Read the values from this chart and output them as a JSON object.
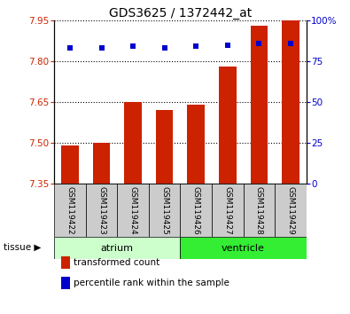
{
  "title": "GDS3625 / 1372442_at",
  "samples": [
    "GSM119422",
    "GSM119423",
    "GSM119424",
    "GSM119425",
    "GSM119426",
    "GSM119427",
    "GSM119428",
    "GSM119429"
  ],
  "bar_values": [
    7.49,
    7.5,
    7.65,
    7.62,
    7.64,
    7.78,
    7.93,
    7.95
  ],
  "bar_bottom": 7.35,
  "percentile_values": [
    83,
    83,
    84,
    83,
    84,
    85,
    86,
    86
  ],
  "ylim_left": [
    7.35,
    7.95
  ],
  "ylim_right": [
    0,
    100
  ],
  "yticks_left": [
    7.35,
    7.5,
    7.65,
    7.8,
    7.95
  ],
  "yticks_right": [
    0,
    25,
    50,
    75,
    100
  ],
  "ytick_labels_right": [
    "0",
    "25",
    "50",
    "75",
    "100%"
  ],
  "bar_color": "#cc2200",
  "dot_color": "#0000cc",
  "tissue_labels": [
    "atrium",
    "ventricle"
  ],
  "tissue_ranges": [
    [
      0,
      3
    ],
    [
      4,
      7
    ]
  ],
  "tissue_color_atrium": "#ccffcc",
  "tissue_color_ventricle": "#33ee33",
  "bg_color": "#ffffff",
  "grid_color": "#000000",
  "axis_label_left_color": "#cc2200",
  "axis_label_right_color": "#0000cc",
  "sample_bg_color": "#cccccc",
  "legend_items": [
    "transformed count",
    "percentile rank within the sample"
  ],
  "legend_colors": [
    "#cc2200",
    "#0000cc"
  ],
  "tissue_arrow_label": "tissue"
}
